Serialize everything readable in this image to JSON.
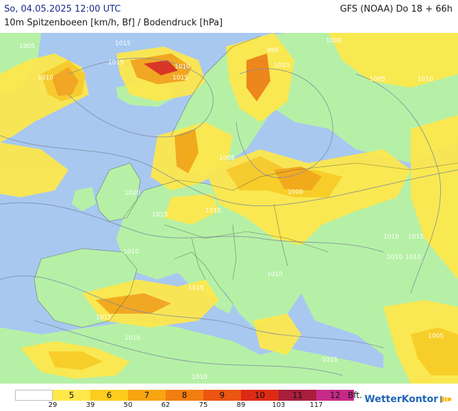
{
  "header": {
    "datetime": "So, 04.05.2025 12:00 UTC",
    "subtitle": "10m Spitzenboeen [km/h, Bf] / Bodendruck [hPa]",
    "model": "GFS (NOAA) Do 18 + 66h"
  },
  "legend": {
    "bands": [
      {
        "label": "",
        "color": "#ffffff"
      },
      {
        "label": "5",
        "color": "#ffe84a"
      },
      {
        "label": "6",
        "color": "#fdcc1f"
      },
      {
        "label": "7",
        "color": "#f8a512"
      },
      {
        "label": "8",
        "color": "#f27e11"
      },
      {
        "label": "9",
        "color": "#eb5512"
      },
      {
        "label": "10",
        "color": "#dd2a15"
      },
      {
        "label": "11",
        "color": "#a81e3c"
      },
      {
        "label": "12",
        "color": "#c72a86"
      }
    ],
    "ticks": [
      "29",
      "39",
      "50",
      "62",
      "75",
      "89",
      "103",
      "117"
    ],
    "unit": "Bft."
  },
  "brand": {
    "name": "WetterKontor",
    "icon": "wind-sock-icon"
  },
  "map": {
    "sea_color": "#a8c8f0",
    "land_color": "#b6f0a6",
    "isobar_labels": [
      "1005",
      "1015",
      "1015",
      "1010",
      "1015",
      "1010",
      "995",
      "1000",
      "1005",
      "1010",
      "1010",
      "1005",
      "1000",
      "1020",
      "1015",
      "1015",
      "1010",
      "1015",
      "1010",
      "1015",
      "1010",
      "1010",
      "1010",
      "1010",
      "1015",
      "1010",
      "1015",
      "1005"
    ]
  }
}
